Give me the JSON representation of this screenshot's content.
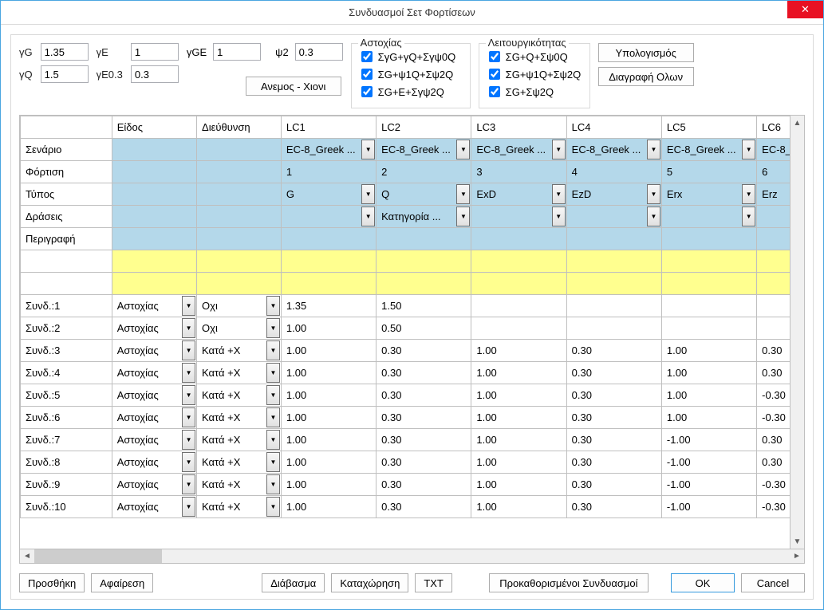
{
  "title": "Συνδυασμοί Σετ Φορτίσεων",
  "factors": {
    "gG_label": "γG",
    "gG": "1.35",
    "gQ_label": "γQ",
    "gQ": "1.5",
    "gE_label": "γE",
    "gE": "1",
    "gE03_label": "γE0.3",
    "gE03": "0.3",
    "gGE_label": "γGE",
    "gGE": "1",
    "psi2_label": "ψ2",
    "psi2": "0.3"
  },
  "wind_snow_btn": "Ανεμος - Χιονι",
  "group_failure": {
    "legend": "Αστοχίας",
    "c1": "ΣγG+γQ+Σγψ0Q",
    "c2": "ΣG+ψ1Q+Σψ2Q",
    "c3": "ΣG+E+Σγψ2Q"
  },
  "group_service": {
    "legend": "Λειτουργικότητας",
    "c1": "ΣG+Q+Σψ0Q",
    "c2": "ΣG+ψ1Q+Σψ2Q",
    "c3": "ΣG+Σψ2Q"
  },
  "calc_btn": "Υπολογισμός",
  "delete_all_btn": "Διαγραφή Ολων",
  "grid": {
    "headers": {
      "c0": "",
      "c1": "Είδος",
      "c2": "Διεύθυνση",
      "lc1": "LC1",
      "lc2": "LC2",
      "lc3": "LC3",
      "lc4": "LC4",
      "lc5": "LC5",
      "lc6": "LC6"
    },
    "meta_rows": [
      {
        "label": "Σενάριο",
        "cells": [
          "EC-8_Greek ...",
          "EC-8_Greek ...",
          "EC-8_Greek ...",
          "EC-8_Greek ...",
          "EC-8_Greek ...",
          "EC-8_"
        ],
        "dd": true
      },
      {
        "label": "Φόρτιση",
        "cells": [
          "1",
          "2",
          "3",
          "4",
          "5",
          "6"
        ],
        "dd": false
      },
      {
        "label": "Τύπος",
        "cells": [
          "G",
          "Q",
          "ExD",
          "EzD",
          "Erx",
          "Erz"
        ],
        "dd": true
      },
      {
        "label": "Δράσεις",
        "cells": [
          "",
          "Κατηγορία ...",
          "",
          "",
          "",
          ""
        ],
        "dd": true
      },
      {
        "label": "Περιγραφή",
        "cells": [
          "",
          "",
          "",
          "",
          "",
          ""
        ],
        "dd": false
      }
    ],
    "combos": [
      {
        "n": "Συνδ.:1",
        "type": "Αστοχίας",
        "dir": "Οχι",
        "v": [
          "1.35",
          "1.50",
          "",
          "",
          "",
          ""
        ]
      },
      {
        "n": "Συνδ.:2",
        "type": "Αστοχίας",
        "dir": "Οχι",
        "v": [
          "1.00",
          "0.50",
          "",
          "",
          "",
          ""
        ]
      },
      {
        "n": "Συνδ.:3",
        "type": "Αστοχίας",
        "dir": "Κατά +X",
        "v": [
          "1.00",
          "0.30",
          "1.00",
          "0.30",
          "1.00",
          "0.30"
        ]
      },
      {
        "n": "Συνδ.:4",
        "type": "Αστοχίας",
        "dir": "Κατά +X",
        "v": [
          "1.00",
          "0.30",
          "1.00",
          "0.30",
          "1.00",
          "0.30"
        ]
      },
      {
        "n": "Συνδ.:5",
        "type": "Αστοχίας",
        "dir": "Κατά +X",
        "v": [
          "1.00",
          "0.30",
          "1.00",
          "0.30",
          "1.00",
          "-0.30"
        ]
      },
      {
        "n": "Συνδ.:6",
        "type": "Αστοχίας",
        "dir": "Κατά +X",
        "v": [
          "1.00",
          "0.30",
          "1.00",
          "0.30",
          "1.00",
          "-0.30"
        ]
      },
      {
        "n": "Συνδ.:7",
        "type": "Αστοχίας",
        "dir": "Κατά +X",
        "v": [
          "1.00",
          "0.30",
          "1.00",
          "0.30",
          "-1.00",
          "0.30"
        ]
      },
      {
        "n": "Συνδ.:8",
        "type": "Αστοχίας",
        "dir": "Κατά +X",
        "v": [
          "1.00",
          "0.30",
          "1.00",
          "0.30",
          "-1.00",
          "0.30"
        ]
      },
      {
        "n": "Συνδ.:9",
        "type": "Αστοχίας",
        "dir": "Κατά +X",
        "v": [
          "1.00",
          "0.30",
          "1.00",
          "0.30",
          "-1.00",
          "-0.30"
        ]
      },
      {
        "n": "Συνδ.:10",
        "type": "Αστοχίας",
        "dir": "Κατά +X",
        "v": [
          "1.00",
          "0.30",
          "1.00",
          "0.30",
          "-1.00",
          "-0.30"
        ]
      }
    ]
  },
  "buttons": {
    "add": "Προσθήκη",
    "remove": "Αφαίρεση",
    "read": "Διάβασμα",
    "save": "Καταχώρηση",
    "txt": "TXT",
    "defaults": "Προκαθορισμένοι Συνδυασμοί",
    "ok": "OK",
    "cancel": "Cancel"
  },
  "colors": {
    "blue": "#b4d8ea",
    "yellow": "#ffff8f",
    "close": "#e81123"
  }
}
